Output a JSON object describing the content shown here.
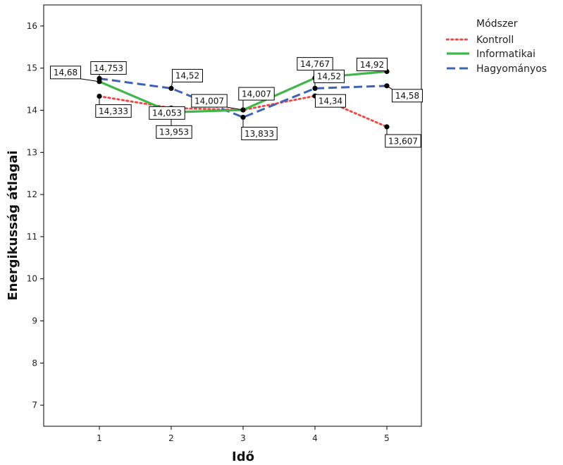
{
  "chart_data": {
    "type": "line",
    "xlabel": "Idő",
    "ylabel": "Energikusság átlagai",
    "x": [
      1,
      2,
      3,
      4,
      5
    ],
    "xticks": [
      "1",
      "2",
      "3",
      "4",
      "5"
    ],
    "ylim": [
      6.5,
      16.5
    ],
    "yticks": [
      "7",
      "8",
      "9",
      "10",
      "11",
      "12",
      "13",
      "14",
      "15",
      "16"
    ],
    "grid": false,
    "legend": {
      "title": "Módszer",
      "position": "right"
    },
    "series": [
      {
        "name": "Kontroll",
        "color": "#f0443f",
        "dash": "dotted",
        "values": [
          14.333,
          14.053,
          14.007,
          14.34,
          13.607
        ],
        "labels": [
          "14,333",
          "14,053",
          "14,007",
          "14,34",
          "13,607"
        ]
      },
      {
        "name": "Informatikai",
        "color": "#3fb64a",
        "dash": "solid",
        "values": [
          14.68,
          13.953,
          14.007,
          14.767,
          14.92
        ],
        "labels": [
          "14,68",
          "13,953",
          "14,007",
          "14,767",
          "14,92"
        ]
      },
      {
        "name": "Hagyományos",
        "color": "#3d62b8",
        "dash": "dashed",
        "values": [
          14.753,
          14.52,
          13.833,
          14.52,
          14.58
        ],
        "labels": [
          "14,753",
          "14,52",
          "13,833",
          "14,52",
          "14,58"
        ]
      }
    ]
  }
}
